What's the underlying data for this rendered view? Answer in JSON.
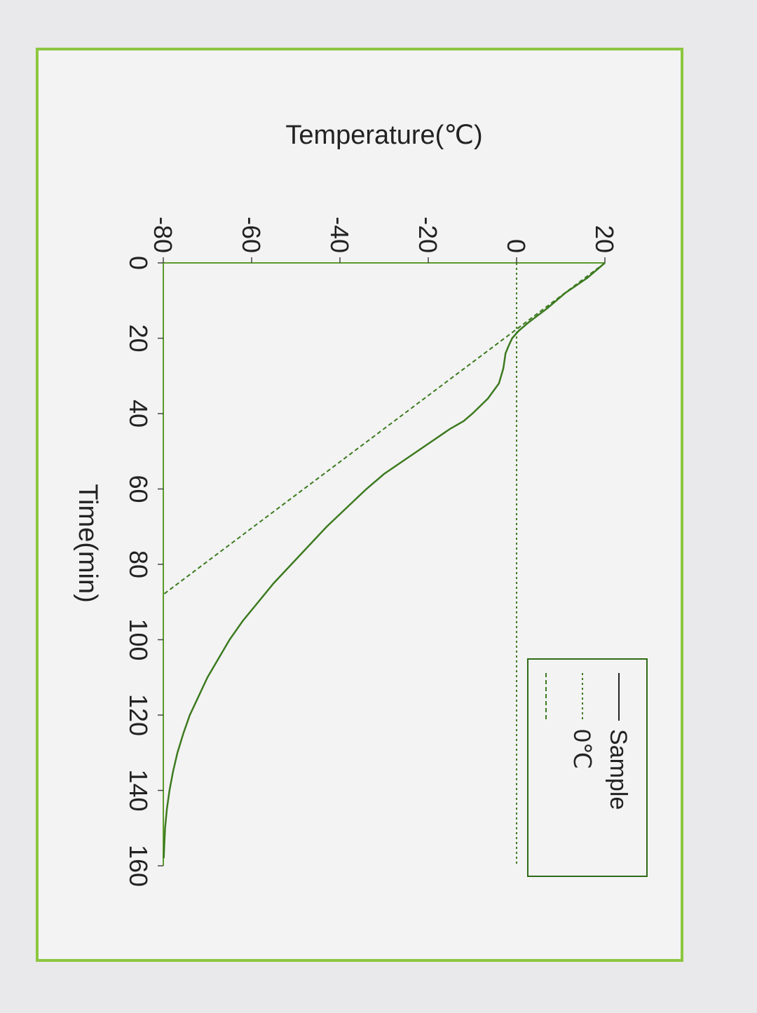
{
  "chart_data": {
    "type": "line",
    "xlabel": "Time(min)",
    "ylabel": "Temperature(℃)",
    "xlim": [
      0,
      160
    ],
    "ylim": [
      -80,
      20
    ],
    "xticks": [
      0,
      20,
      40,
      60,
      80,
      100,
      120,
      140,
      160
    ],
    "yticks": [
      -80,
      -60,
      -40,
      -20,
      0,
      20
    ],
    "legend_position": "top-right",
    "colors": {
      "frame": "#8cc63f",
      "series": "#3c7a1f",
      "axis": "#5a9a2a"
    },
    "series": [
      {
        "name": "Sample",
        "style": "solid",
        "x": [
          0,
          4,
          8,
          12,
          16,
          18,
          20,
          22,
          24,
          28,
          32,
          36,
          40,
          42,
          44,
          48,
          52,
          56,
          60,
          65,
          70,
          75,
          80,
          85,
          90,
          95,
          100,
          105,
          110,
          115,
          120,
          125,
          130,
          135,
          140,
          145,
          150,
          155,
          158
        ],
        "y": [
          20,
          16,
          11,
          7,
          2.5,
          0.5,
          -1,
          -1.8,
          -2.5,
          -3,
          -4,
          -6.5,
          -10,
          -12,
          -15,
          -20,
          -25,
          -30,
          -34,
          -38.5,
          -43,
          -47,
          -51,
          -55,
          -58.5,
          -62,
          -65,
          -67.5,
          -70,
          -72,
          -74,
          -75.5,
          -76.8,
          -77.8,
          -78.6,
          -79.2,
          -79.6,
          -79.8,
          -79.9
        ]
      },
      {
        "name": "0℃",
        "style": "dotted",
        "x": [
          0,
          160
        ],
        "y": [
          0,
          0
        ]
      },
      {
        "name": "",
        "style": "dashed",
        "x": [
          0,
          88
        ],
        "y": [
          20,
          -80
        ]
      }
    ]
  }
}
